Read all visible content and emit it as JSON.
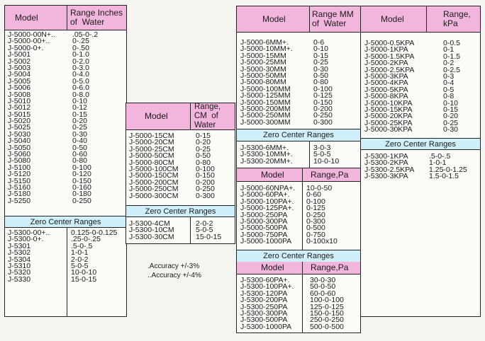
{
  "table1": {
    "headers": {
      "model": "Model",
      "range": "Range Inches\nof  Water"
    },
    "models": [
      "J-5000-00N+..",
      "J-5000-00+..",
      "J-5000-0+.",
      "J-5001",
      "J-5002",
      "J-5003",
      "J-5004",
      "J-5005",
      "J-5006",
      "J-5008",
      "J-5010",
      "J-5012",
      "J-5015",
      "J-5020",
      "J-5025",
      "J-5030",
      "J-5040",
      "J-5050",
      "J-5060",
      "J-5080",
      "J-5100",
      "J-5120",
      "J-5150",
      "J-5160",
      "J-5180",
      "J-5250"
    ],
    "ranges": [
      ".05-0-.2",
      "0-.25",
      "0-.50",
      "0-1.0",
      "0-2.0",
      "0-3.0",
      "0-4.0",
      "0-5.0",
      "0-6.0",
      "0-8.0",
      "0-10",
      "0-12",
      "0-15",
      "0-20",
      "0-25",
      "0-30",
      "0-40",
      "0-50",
      "0-60",
      "0-80",
      "0-100",
      "0-120",
      "0-150",
      "0-160",
      "0-180",
      "0-250"
    ],
    "zero_title": "Zero Center Ranges",
    "zero_models": [
      "J-5300-00+..",
      "J-5300-0+.",
      "J-5301",
      "J-5302",
      "J-5304",
      "J-5310",
      "J-5320",
      "J-5330"
    ],
    "zero_ranges": [
      "0.125-0-0.125",
      ".25-0-.25",
      ".5-0-.5",
      "1-0-1",
      "2-0-2",
      "5-0-5",
      "10-0-10",
      "15-0-15"
    ]
  },
  "table2": {
    "headers": {
      "model": "Model",
      "range": "Range,\nCM  of\nWater"
    },
    "models": [
      "J-5000-15CM",
      "J-5000-20CM",
      "J-5000-25CM",
      "J-5000-50CM",
      "J-5000-80CM",
      "J-5000-100CM",
      "J-5000-150CM",
      "J-5000-200CM",
      "J-5000-250CM",
      "J-5000-300CM"
    ],
    "ranges": [
      "0-15",
      "0-20",
      "0-25",
      "0-50",
      "0-80",
      "0-100",
      "0-150",
      "0-200",
      "0-250",
      "0-300"
    ],
    "zero_title": "Zero Center Ranges",
    "zero_models": [
      "J-5300-4CM",
      "J-5300-10CM",
      "J-5300-30CM"
    ],
    "zero_ranges": [
      "2-0-2",
      "5-0-5",
      "15-0-15"
    ],
    "notes": [
      ".Accuracy +/-3%",
      "..Accuracy +/-4%"
    ]
  },
  "table3": {
    "headers": {
      "model": "Model",
      "range": "Range MM\nof  Water"
    },
    "models": [
      "J-5000-6MM+.",
      "J-5000-10MM+.",
      "J-5000-15MM",
      "J-5000-25MM",
      "J-5000-30MM",
      "J-5000-50MM",
      "J-5000-80MM",
      "J-5000-100MM",
      "J-5000-125MM",
      "J-5000-150MM",
      "J-5000-200MM",
      "J-5000-250MM",
      "J-5000-300MM"
    ],
    "ranges": [
      "0-6",
      "0-10",
      "0-15",
      "0-25",
      "0-30",
      "0-50",
      "0-80",
      "0-100",
      "0-125",
      "0-150",
      "0-200",
      "0-250",
      "0-300"
    ],
    "zero_title": "Zero Center Ranges",
    "zero_models": [
      "J-5300-6MM+.",
      "J-5300-10MM+.",
      "J-5300-20MM+."
    ],
    "zero_ranges": [
      "3-0-3",
      "5-0-5",
      "10-0-10"
    ]
  },
  "table4": {
    "headers": {
      "model": "Model",
      "range": "Range,Pa"
    },
    "models": [
      "J-5000-60NPA+.",
      "J-5000-60PA+.",
      "J-5000-100PA+.",
      "J-5000-125PA+.",
      "J-5000-250PA",
      "J-5000-300PA",
      "J-5000-500PA",
      "J-5000-750PA",
      "J-5000-1000PA"
    ],
    "ranges": [
      "10-0-50",
      "0-60",
      "0-100",
      "0-125",
      "0-250",
      "0-300",
      "0-500",
      "0-750",
      "0-100x10"
    ],
    "zero_title": "Zero Center Ranges",
    "zero_headers": {
      "model": "Model",
      "range": "Range,Pa"
    },
    "zero_models": [
      "J-5300-60PA+.",
      "J-5300-100PA+.",
      "J-5300-120PA",
      "J-5300-200PA",
      "J-5300-250PA",
      "J-5300-300PA",
      "J-5300-500PA",
      "J-5300-1000PA"
    ],
    "zero_ranges": [
      "30-0-30",
      "50-0-50",
      "60-0-60",
      "100-0-100",
      "125-0-125",
      "150-0-150",
      "250-0-250",
      "500-0-500"
    ]
  },
  "table5": {
    "headers": {
      "model": "Model",
      "range": "Range,\nkPa"
    },
    "models": [
      "J-5000-0.5KPA",
      "J-5000-1KPA",
      "J-5000-1.5KPA",
      "J-5000-2KPA",
      "J-5000-2.5KPA",
      "J-5000-3KPA",
      "J-5000-4KPA",
      "J-5000-5KPA",
      "J-5000-8KPA",
      "J-5000-10KPA",
      "J-5000-15KPA",
      "J-5000-20KPA",
      "J-5000-25KPA",
      "J-5000-30KPA"
    ],
    "ranges": [
      "0-0.5",
      "0-1",
      "0-1.5",
      "0-2",
      "0-2.5",
      "0-3",
      "0-4",
      "0-5",
      "0-8",
      "0-10",
      "0-15",
      "0-20",
      "0-25",
      "0-30"
    ],
    "zero_title": "Zero Center Ranges",
    "zero_models": [
      "J-5300-1KPA",
      "J-5300-2KPA",
      "J-5300-2.5KPA",
      "J-5300-3KPA"
    ],
    "zero_ranges": [
      ".5-0-.5",
      "1-0-1",
      "1.25-0-1.25",
      "1.5-0-1.5"
    ]
  }
}
